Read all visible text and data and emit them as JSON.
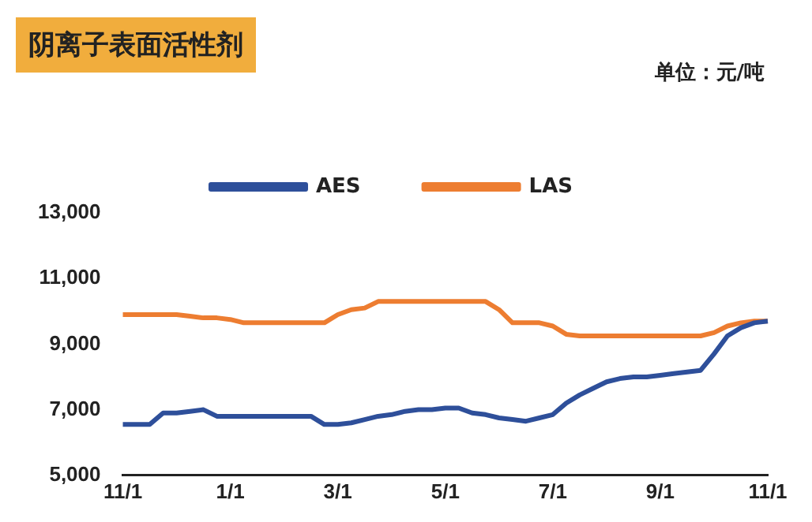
{
  "chart_data": {
    "type": "line",
    "title": "阴离子表面活性剂",
    "subtitle": "单位：元/吨",
    "categories": [
      "11/1",
      null,
      null,
      null,
      null,
      null,
      null,
      null,
      "1/1",
      null,
      null,
      null,
      null,
      null,
      null,
      null,
      "3/1",
      null,
      null,
      null,
      null,
      null,
      null,
      null,
      "5/1",
      null,
      null,
      null,
      null,
      null,
      null,
      null,
      "7/1",
      null,
      null,
      null,
      null,
      null,
      null,
      null,
      "9/1",
      null,
      null,
      null,
      null,
      null,
      null,
      null,
      "11/1"
    ],
    "series": [
      {
        "name": "AES",
        "color": "#2e4f9a",
        "values": [
          6550,
          6550,
          6550,
          6900,
          6900,
          6950,
          7000,
          6800,
          6800,
          6800,
          6800,
          6800,
          6800,
          6800,
          6800,
          6550,
          6550,
          6600,
          6700,
          6800,
          6850,
          6950,
          7000,
          7000,
          7050,
          7050,
          6900,
          6850,
          6750,
          6700,
          6650,
          6750,
          6850,
          7200,
          7450,
          7650,
          7850,
          7950,
          8000,
          8000,
          8050,
          8100,
          8150,
          8200,
          8700,
          9250,
          9500,
          9650,
          9700
        ]
      },
      {
        "name": "LAS",
        "color": "#ed7d31",
        "values": [
          9900,
          9900,
          9900,
          9900,
          9900,
          9850,
          9800,
          9800,
          9750,
          9650,
          9650,
          9650,
          9650,
          9650,
          9650,
          9650,
          9900,
          10050,
          10100,
          10300,
          10300,
          10300,
          10300,
          10300,
          10300,
          10300,
          10300,
          10300,
          10050,
          9650,
          9650,
          9650,
          9550,
          9300,
          9250,
          9250,
          9250,
          9250,
          9250,
          9250,
          9250,
          9250,
          9250,
          9250,
          9350,
          9550,
          9650,
          9700,
          9700
        ]
      }
    ],
    "ylim": [
      5000,
      13000
    ],
    "yticks": [
      {
        "value": 5000,
        "label": "5,000"
      },
      {
        "value": 7000,
        "label": "7,000"
      },
      {
        "value": 9000,
        "label": "9,000"
      },
      {
        "value": 11000,
        "label": "11,000"
      },
      {
        "value": 13000,
        "label": "13,000"
      }
    ],
    "grid": false,
    "legend": "top",
    "marker": "none",
    "line_style": "solid"
  }
}
